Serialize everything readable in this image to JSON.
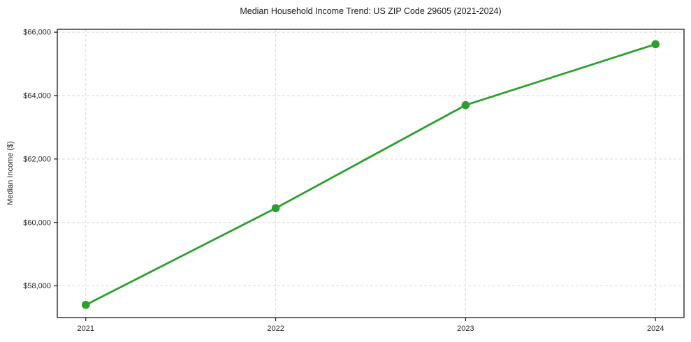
{
  "chart_data": {
    "type": "line",
    "title": "Median Household Income Trend: US ZIP Code 29605 (2021-2024)",
    "xlabel": "",
    "ylabel": "Median Income ($)",
    "x": [
      2021,
      2022,
      2023,
      2024
    ],
    "series": [
      {
        "name": "Median household income",
        "values": [
          57400,
          60450,
          63700,
          65620
        ]
      }
    ],
    "xticks": [
      2021,
      2022,
      2023,
      2024
    ],
    "xtick_labels": [
      "2021",
      "2022",
      "2023",
      "2024"
    ],
    "yticks": [
      58000,
      60000,
      62000,
      64000,
      66000
    ],
    "ytick_labels": [
      "$58,000",
      "$60,000",
      "$62,000",
      "$64,000",
      "$66,000"
    ],
    "xlim": [
      2020.85,
      2024.15
    ],
    "ylim": [
      57000,
      66090
    ],
    "grid": true,
    "grid_style": "dashed",
    "legend": "none",
    "marker": "circle",
    "colors": {
      "line": "#2ca02c",
      "marker": "#2ca02c",
      "grid": "#d9d9d9",
      "axis": "#1a1a1a",
      "tick": "#1a1a1a",
      "text": "#262626",
      "background": "#ffffff"
    }
  }
}
